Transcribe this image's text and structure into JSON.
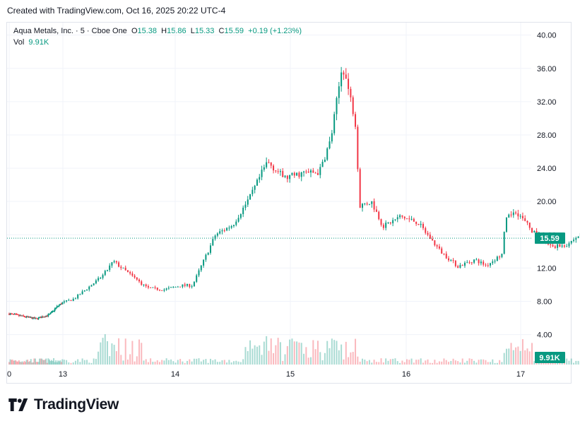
{
  "caption": "Created with TradingView.com, Oct 16, 2025 20:22 UTC-4",
  "legend": {
    "symbol": "Aqua Metals, Inc. · 5 · Cboe One",
    "o_label": "O",
    "o_value": "15.38",
    "h_label": "H",
    "h_value": "15.86",
    "l_label": "L",
    "l_value": "15.33",
    "c_label": "C",
    "c_value": "15.59",
    "change": "+0.19 (+1.23%)",
    "vol_label": "Vol",
    "vol_value": "9.91K"
  },
  "brand": {
    "name": "TradingView"
  },
  "colors": {
    "up": "#089981",
    "down": "#f23645",
    "grid": "#f0f3fa",
    "text": "#131722",
    "last": "#089981"
  },
  "chart_data": {
    "type": "candlestick",
    "interval": "5",
    "y_ticks": [
      "40.00",
      "36.00",
      "32.00",
      "28.00",
      "24.00",
      "20.00",
      "16.00",
      "12.00",
      "8.00",
      "4.00"
    ],
    "ylim": [
      0.4,
      41.5
    ],
    "x_ticks": [
      "0",
      "13",
      "14",
      "15",
      "16",
      "17"
    ],
    "last_price": "15.59",
    "last_volume": "9.91K",
    "anchors": [
      {
        "x": 0.0,
        "y": 6.5
      },
      {
        "x": 0.5,
        "y": 5.9
      },
      {
        "x": 0.75,
        "y": 6.4
      },
      {
        "x": 0.9,
        "y": 7.4
      },
      {
        "x": 1.1,
        "y": 8.3
      },
      {
        "x": 1.35,
        "y": 11.0
      },
      {
        "x": 1.45,
        "y": 12.8
      },
      {
        "x": 1.6,
        "y": 11.2
      },
      {
        "x": 1.75,
        "y": 9.6
      },
      {
        "x": 1.9,
        "y": 9.4
      },
      {
        "x": 2.05,
        "y": 9.9
      },
      {
        "x": 2.15,
        "y": 9.9
      },
      {
        "x": 2.35,
        "y": 16.0
      },
      {
        "x": 2.5,
        "y": 17.2
      },
      {
        "x": 2.65,
        "y": 20.5
      },
      {
        "x": 2.8,
        "y": 24.8
      },
      {
        "x": 2.95,
        "y": 22.8
      },
      {
        "x": 3.1,
        "y": 23.4
      },
      {
        "x": 3.25,
        "y": 23.5
      },
      {
        "x": 3.35,
        "y": 27.5
      },
      {
        "x": 3.45,
        "y": 36.5
      },
      {
        "x": 3.5,
        "y": 33.5
      },
      {
        "x": 3.56,
        "y": 29.8
      },
      {
        "x": 3.6,
        "y": 19.5
      },
      {
        "x": 3.7,
        "y": 20.0
      },
      {
        "x": 3.8,
        "y": 17.0
      },
      {
        "x": 3.95,
        "y": 18.2
      },
      {
        "x": 4.1,
        "y": 17.5
      },
      {
        "x": 4.3,
        "y": 14.0
      },
      {
        "x": 4.45,
        "y": 12.2
      },
      {
        "x": 4.6,
        "y": 13.0
      },
      {
        "x": 4.7,
        "y": 12.3
      },
      {
        "x": 4.85,
        "y": 13.8
      },
      {
        "x": 4.86,
        "y": 17.5
      },
      {
        "x": 4.95,
        "y": 19.0
      },
      {
        "x": 5.1,
        "y": 16.5
      },
      {
        "x": 5.25,
        "y": 14.6
      },
      {
        "x": 5.4,
        "y": 14.8
      },
      {
        "x": 5.55,
        "y": 16.3
      },
      {
        "x": 5.7,
        "y": 15.5
      },
      {
        "x": 5.85,
        "y": 15.0
      },
      {
        "x": 6.0,
        "y": 15.4
      },
      {
        "x": 6.05,
        "y": 15.6
      }
    ]
  }
}
